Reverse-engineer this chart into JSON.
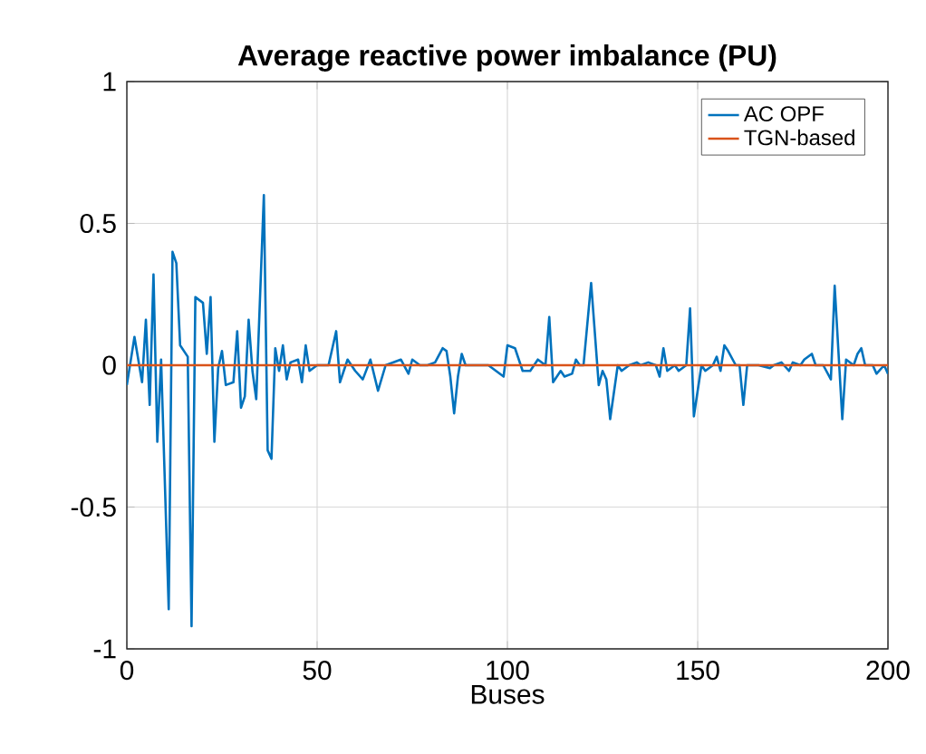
{
  "chart_data": {
    "type": "line",
    "title": "Average reactive power imbalance (PU)",
    "xlabel": "Buses",
    "xlim": [
      0,
      200
    ],
    "ylim": [
      -1,
      1
    ],
    "xticks": [
      0,
      50,
      100,
      150,
      200
    ],
    "yticks": [
      -1,
      -0.5,
      0,
      0.5,
      1
    ],
    "grid": true,
    "legend": "top right",
    "series": [
      {
        "name": "AC OPF",
        "color": "#0072bd",
        "x": [
          0,
          2,
          4,
          5,
          6,
          7,
          8,
          9,
          11,
          12,
          13,
          14,
          16,
          17,
          18,
          20,
          21,
          22,
          23,
          24,
          25,
          26,
          28,
          29,
          30,
          31,
          32,
          33,
          34,
          36,
          37,
          38,
          39,
          40,
          41,
          42,
          43,
          45,
          46,
          47,
          48,
          50,
          53,
          55,
          56,
          58,
          60,
          62,
          64,
          66,
          68,
          72,
          74,
          75,
          77,
          79,
          81,
          83,
          84,
          85,
          86,
          87,
          88,
          89,
          95,
          99,
          100,
          102,
          104,
          106,
          108,
          110,
          111,
          112,
          114,
          115,
          117,
          118,
          119,
          120,
          122,
          124,
          125,
          126,
          127,
          129,
          130,
          132,
          134,
          135,
          137,
          139,
          140,
          141,
          142,
          144,
          145,
          147,
          148,
          149,
          151,
          152,
          154,
          155,
          156,
          157,
          158,
          160,
          161,
          162,
          163,
          166,
          169,
          170,
          172,
          174,
          175,
          177,
          178,
          180,
          181,
          183,
          185,
          186,
          188,
          189,
          191,
          192,
          193,
          194,
          196,
          197,
          199,
          200
        ],
        "values": [
          -0.07,
          0.1,
          -0.06,
          0.16,
          -0.14,
          0.32,
          -0.27,
          0.02,
          -0.86,
          0.4,
          0.36,
          0.07,
          0.03,
          -0.92,
          0.24,
          0.22,
          0.04,
          0.24,
          -0.27,
          -0.01,
          0.05,
          -0.07,
          -0.06,
          0.12,
          -0.15,
          -0.11,
          0.16,
          -0.02,
          -0.12,
          0.6,
          -0.3,
          -0.33,
          0.06,
          -0.02,
          0.07,
          -0.05,
          0.01,
          0.02,
          -0.06,
          0.07,
          -0.02,
          0,
          0,
          0.12,
          -0.06,
          0.02,
          -0.02,
          -0.05,
          0.02,
          -0.09,
          0,
          0.02,
          -0.03,
          0.02,
          0,
          0,
          0.01,
          0.06,
          0.05,
          -0.04,
          -0.17,
          -0.04,
          0.04,
          0,
          0,
          -0.04,
          0.07,
          0.06,
          -0.02,
          -0.02,
          0.02,
          0,
          0.17,
          -0.06,
          -0.02,
          -0.04,
          -0.03,
          0.02,
          0,
          0,
          0.29,
          -0.07,
          -0.02,
          -0.05,
          -0.19,
          0,
          -0.02,
          0,
          0.01,
          0,
          0.01,
          0,
          -0.04,
          0.06,
          -0.02,
          0,
          -0.02,
          0,
          0.2,
          -0.18,
          0,
          -0.02,
          0,
          0.03,
          -0.02,
          0.07,
          0.05,
          0,
          0,
          -0.14,
          0,
          0,
          -0.01,
          0,
          0.01,
          -0.02,
          0.01,
          0,
          0.02,
          0.04,
          0,
          0,
          -0.05,
          0.28,
          -0.19,
          0.02,
          0,
          0.04,
          0.06,
          0,
          0,
          -0.03,
          0,
          -0.03
        ]
      },
      {
        "name": "TGN-based",
        "color": "#d95319",
        "x": [
          0,
          200
        ],
        "values": [
          0,
          0
        ]
      }
    ]
  }
}
